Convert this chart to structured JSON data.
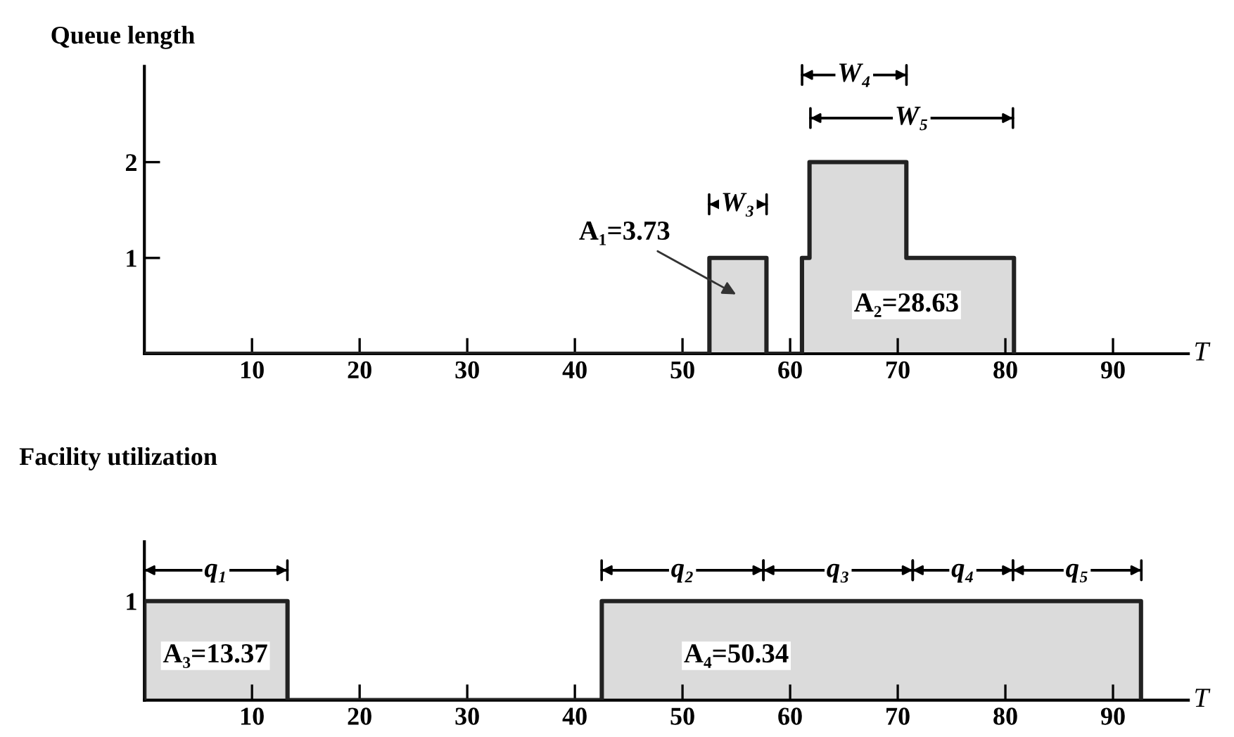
{
  "chart_data": [
    {
      "type": "area",
      "ylabel": "Queue length",
      "xlabel": "T",
      "xlim": [
        0,
        97
      ],
      "ylim": [
        0,
        3.0
      ],
      "xticks": [
        10,
        20,
        30,
        40,
        50,
        60,
        70,
        80,
        90
      ],
      "yticks": [
        1,
        2
      ],
      "grid": false,
      "legend": false,
      "series": [
        {
          "color": "#222222",
          "x": [
            0,
            52.5,
            52.5,
            57.8,
            57.8,
            61.1,
            61.1,
            61.8,
            61.8,
            70.8,
            70.8,
            80.8,
            80.8
          ],
          "values": [
            0,
            0,
            1,
            1,
            0,
            0,
            1,
            1,
            2,
            2,
            1,
            1,
            0
          ]
        }
      ],
      "annotations": [
        "W₃",
        "W₄",
        "W₅",
        "A₁=3.73",
        "A₂=28.63"
      ]
    },
    {
      "type": "area",
      "ylabel": "Facility utilization",
      "xlabel": "T",
      "xlim": [
        0,
        97
      ],
      "ylim": [
        0,
        1.6
      ],
      "xticks": [
        10,
        20,
        30,
        40,
        50,
        60,
        70,
        80,
        90
      ],
      "yticks": [
        1
      ],
      "grid": false,
      "legend": false,
      "series": [
        {
          "color": "#222222",
          "x": [
            0,
            0,
            13.3,
            13.3,
            42.5,
            42.5,
            92.6,
            92.6
          ],
          "values": [
            0,
            1,
            1,
            0,
            0,
            1,
            1,
            0
          ]
        }
      ],
      "annotations": [
        "q₁",
        "q₂",
        "q₃",
        "q₄",
        "q₅",
        "A₃=13.37",
        "A₄=50.34"
      ]
    }
  ]
}
